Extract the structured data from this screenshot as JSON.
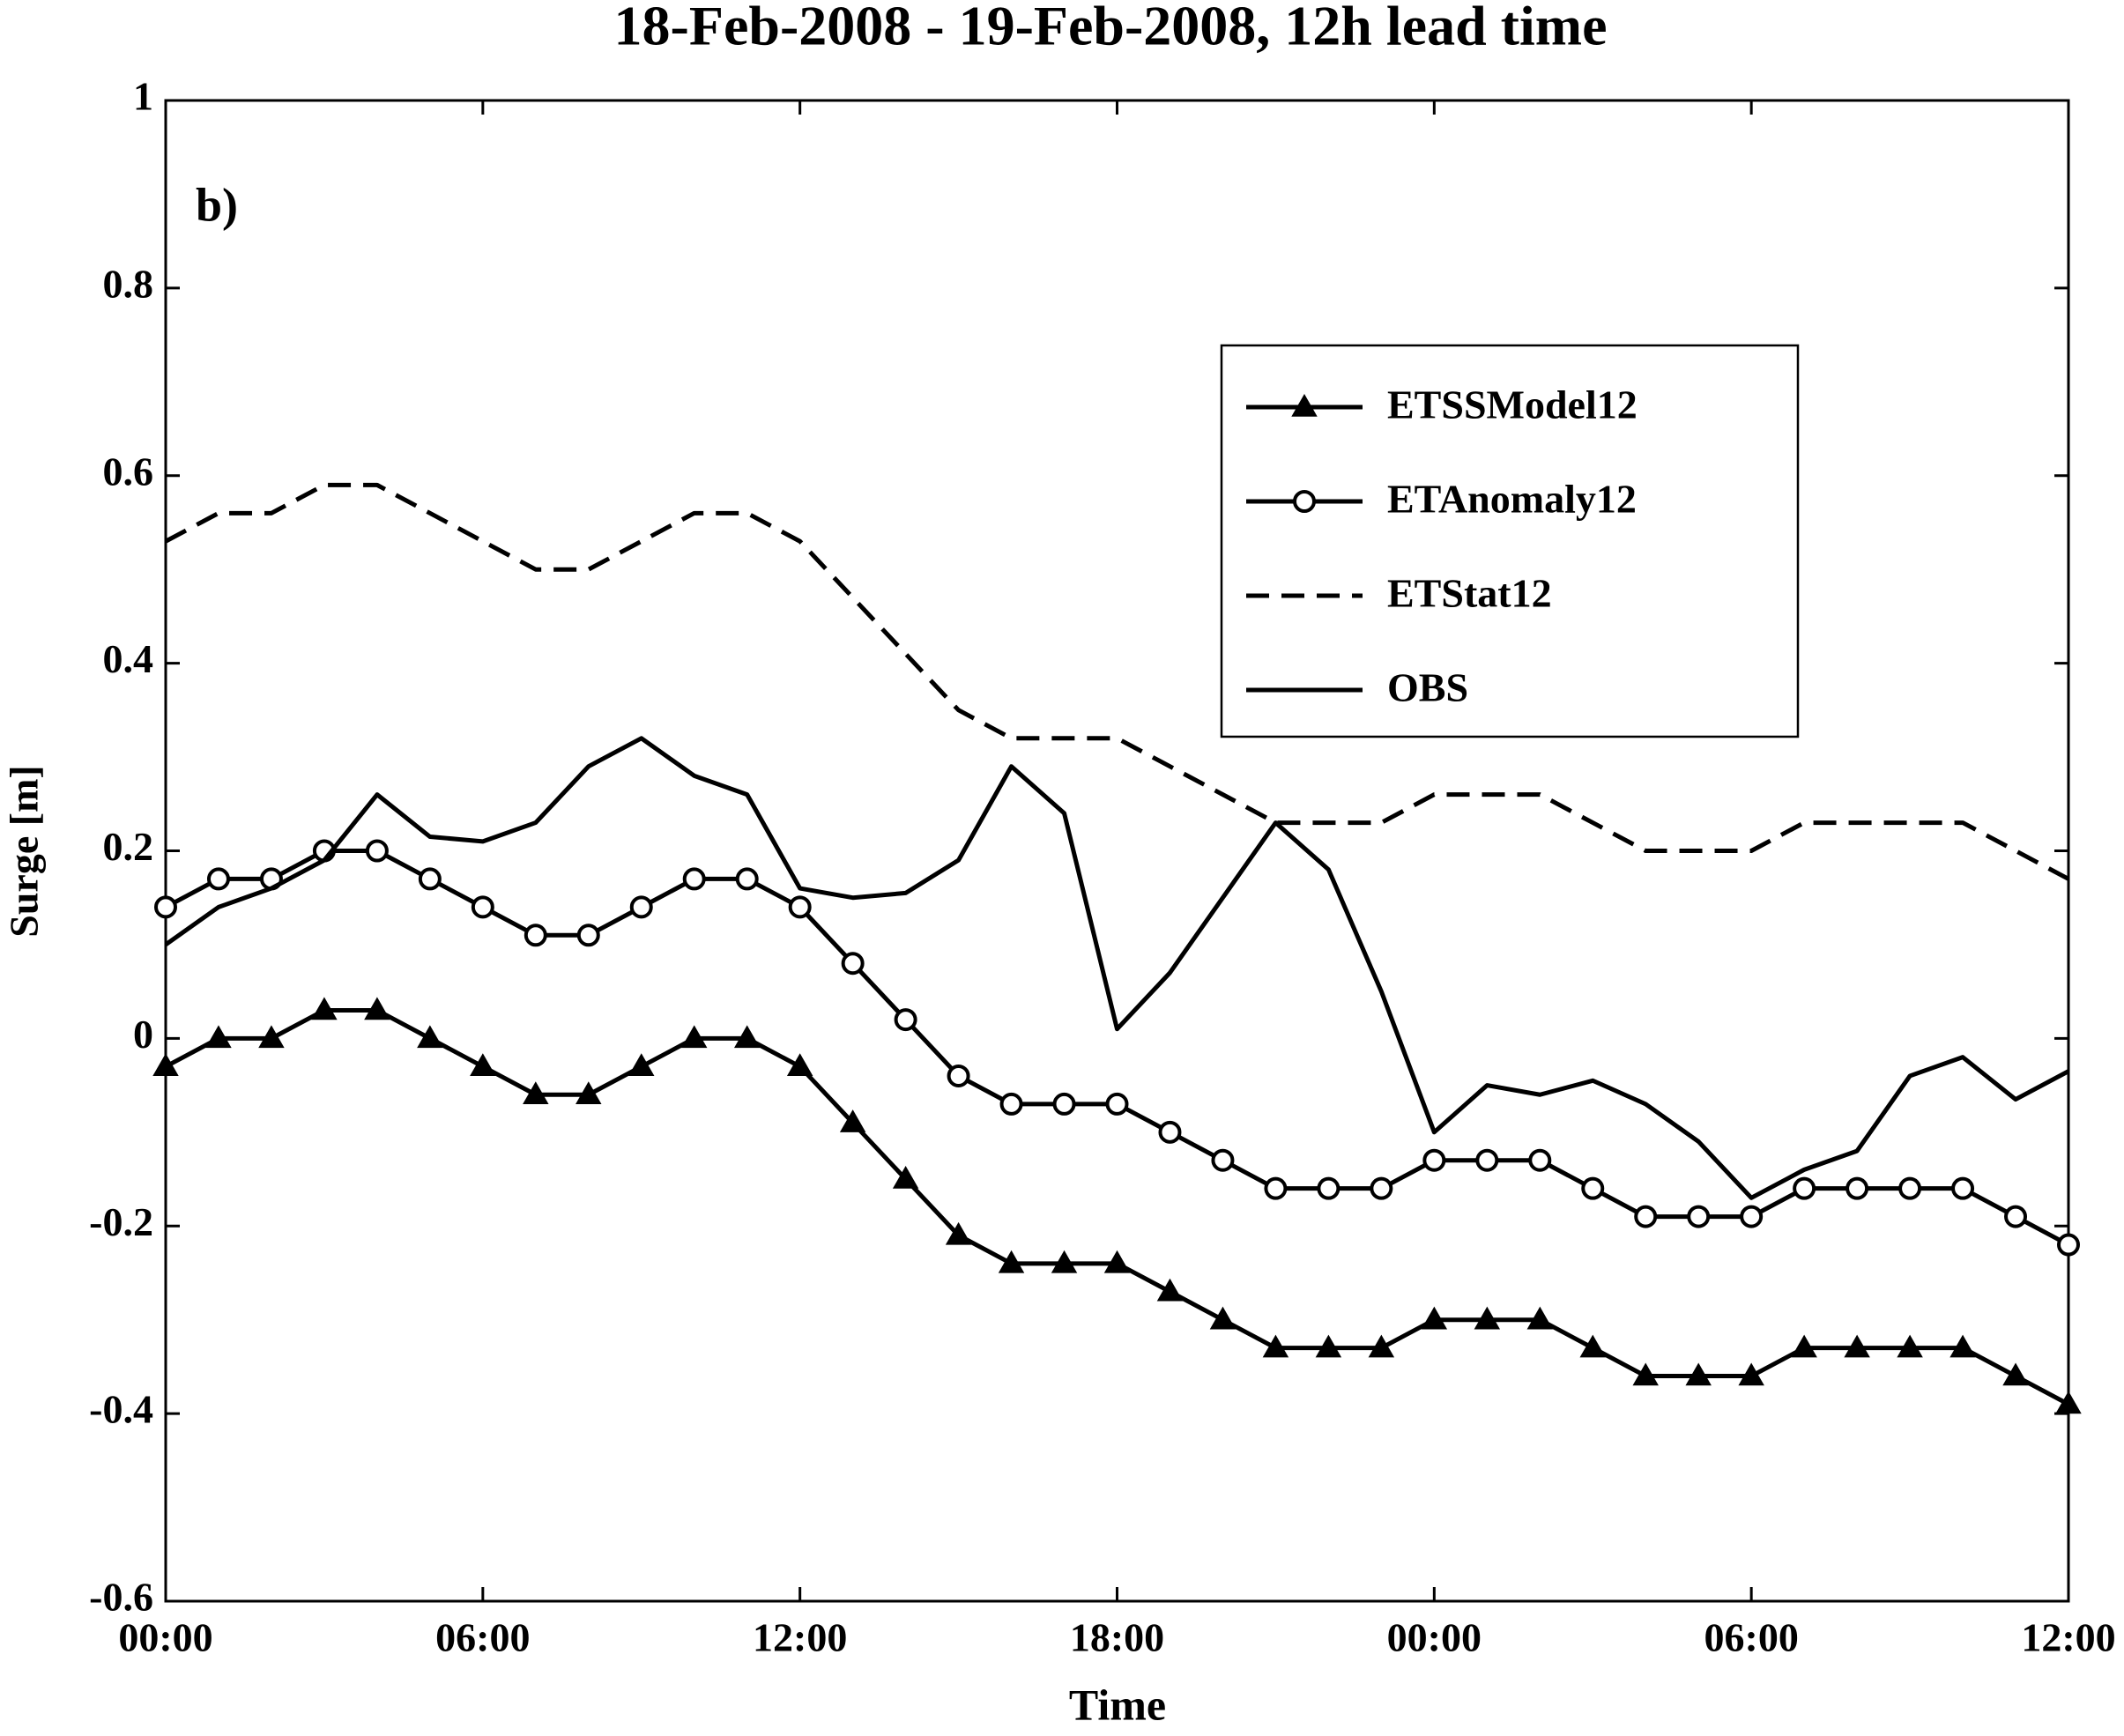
{
  "chart_data": {
    "type": "line",
    "title": "18-Feb-2008 - 19-Feb-2008, 12h lead time",
    "annotation": "b)",
    "x_label": "Time",
    "y_label": "Surge [m]",
    "x": [
      0,
      1,
      2,
      3,
      4,
      5,
      6,
      7,
      8,
      9,
      10,
      11,
      12,
      13,
      14,
      15,
      16,
      17,
      18,
      19,
      20,
      21,
      22,
      23,
      24,
      25,
      26,
      27,
      28,
      29,
      30,
      31,
      32,
      33,
      34,
      35,
      36
    ],
    "xlim": [
      0,
      36
    ],
    "xticks": [
      {
        "value": 0,
        "label": "00:00"
      },
      {
        "value": 6,
        "label": "06:00"
      },
      {
        "value": 12,
        "label": "12:00"
      },
      {
        "value": 18,
        "label": "18:00"
      },
      {
        "value": 24,
        "label": "00:00"
      },
      {
        "value": 30,
        "label": "06:00"
      },
      {
        "value": 36,
        "label": "12:00"
      }
    ],
    "ylim": [
      -0.6,
      1
    ],
    "yticks": [
      -0.6,
      -0.4,
      -0.2,
      0,
      0.2,
      0.4,
      0.6,
      0.8,
      1
    ],
    "grid": false,
    "legend": "upper right",
    "series": [
      {
        "name": "ETSSModel12",
        "color": "#000000",
        "marker": "triangle",
        "dash": "solid",
        "values": [
          -0.03,
          0,
          0,
          0.03,
          0.03,
          0,
          -0.03,
          -0.06,
          -0.06,
          -0.03,
          0,
          0,
          -0.03,
          -0.09,
          -0.15,
          -0.21,
          -0.24,
          -0.24,
          -0.24,
          -0.27,
          -0.3,
          -0.33,
          -0.33,
          -0.33,
          -0.3,
          -0.3,
          -0.3,
          -0.33,
          -0.36,
          -0.36,
          -0.36,
          -0.33,
          -0.33,
          -0.33,
          -0.33,
          -0.36,
          -0.39
        ]
      },
      {
        "name": "ETAnomaly12",
        "color": "#000000",
        "marker": "circle",
        "dash": "solid",
        "values": [
          0.14,
          0.17,
          0.17,
          0.2,
          0.2,
          0.17,
          0.14,
          0.11,
          0.11,
          0.14,
          0.17,
          0.17,
          0.14,
          0.08,
          0.02,
          -0.04,
          -0.07,
          -0.07,
          -0.07,
          -0.1,
          -0.13,
          -0.16,
          -0.16,
          -0.16,
          -0.13,
          -0.13,
          -0.13,
          -0.16,
          -0.19,
          -0.19,
          -0.19,
          -0.16,
          -0.16,
          -0.16,
          -0.16,
          -0.19,
          -0.22
        ]
      },
      {
        "name": "ETStat12",
        "color": "#000000",
        "marker": "none",
        "dash": "dashed",
        "values": [
          0.53,
          0.56,
          0.56,
          0.59,
          0.59,
          0.56,
          0.53,
          0.5,
          0.5,
          0.53,
          0.56,
          0.56,
          0.53,
          0.47,
          0.41,
          0.35,
          0.32,
          0.32,
          0.32,
          0.29,
          0.26,
          0.23,
          0.23,
          0.23,
          0.26,
          0.26,
          0.26,
          0.23,
          0.2,
          0.2,
          0.2,
          0.23,
          0.23,
          0.23,
          0.23,
          0.2,
          0.17
        ]
      },
      {
        "name": "OBS",
        "color": "#000000",
        "marker": "none",
        "dash": "solid",
        "values": [
          0.1,
          0.14,
          0.16,
          0.19,
          0.26,
          0.215,
          0.21,
          0.23,
          0.29,
          0.32,
          0.28,
          0.26,
          0.16,
          0.15,
          0.155,
          0.19,
          0.29,
          0.24,
          0.01,
          0.07,
          0.15,
          0.23,
          0.18,
          0.05,
          -0.1,
          -0.05,
          -0.06,
          -0.045,
          -0.07,
          -0.11,
          -0.17,
          -0.14,
          -0.12,
          -0.04,
          -0.02,
          -0.065,
          -0.035
        ]
      }
    ]
  }
}
